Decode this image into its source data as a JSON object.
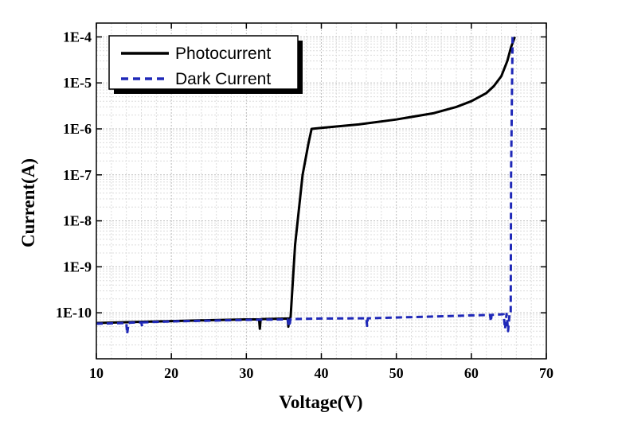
{
  "chart_data": {
    "type": "line",
    "xlabel": "Voltage(V)",
    "ylabel": "Current(A)",
    "xlim": [
      10,
      70
    ],
    "ylim": [
      1e-11,
      0.0002
    ],
    "yscale": "log",
    "grid": true,
    "legend": "top-left",
    "x_ticks": [
      10,
      20,
      30,
      40,
      50,
      60,
      70
    ],
    "x_tick_labels": [
      "10",
      "20",
      "30",
      "40",
      "50",
      "60",
      "70"
    ],
    "y_ticks": [
      1e-10,
      1e-09,
      1e-08,
      1e-07,
      1e-06,
      1e-05,
      0.0001
    ],
    "y_tick_labels": [
      "1E-10",
      "1E-9",
      "1E-8",
      "1E-7",
      "1E-6",
      "1E-5",
      "1E-4"
    ],
    "series": [
      {
        "name": "Photocurrent",
        "color": "#000000",
        "style": "solid",
        "x": [
          10,
          15,
          20,
          25,
          30,
          31.7,
          31.8,
          31.9,
          32,
          35.5,
          35.6,
          35.7,
          35.9,
          36.5,
          37.5,
          38.3,
          38.7,
          40,
          45,
          50,
          55,
          58,
          60,
          62,
          63,
          64,
          64.8,
          65.3,
          65.8
        ],
        "y": [
          6e-11,
          6.3e-11,
          6.6e-11,
          6.9e-11,
          7.2e-11,
          7.2e-11,
          4.5e-11,
          7.2e-11,
          7.3e-11,
          7.5e-11,
          5e-11,
          7.5e-11,
          8e-11,
          3e-09,
          1e-07,
          5e-07,
          1e-06,
          1.05e-06,
          1.25e-06,
          1.6e-06,
          2.2e-06,
          3e-06,
          4e-06,
          6e-06,
          8.5e-06,
          1.4e-05,
          3e-05,
          6e-05,
          0.0001
        ]
      },
      {
        "name": "Dark Current",
        "color": "#1f28b8",
        "style": "dashed",
        "x": [
          10,
          14,
          14.1,
          14.3,
          14.5,
          16,
          16.1,
          16.2,
          20,
          30,
          35.5,
          35.7,
          35.9,
          40,
          46,
          46.1,
          46.2,
          50,
          55,
          60,
          62.5,
          62.6,
          62.7,
          64.3,
          64.5,
          64.7,
          64.9,
          65.1,
          65.25,
          65.3,
          65.5,
          65.8
        ],
        "y": [
          5.8e-11,
          6e-11,
          3.5e-11,
          6e-11,
          6.1e-11,
          6.2e-11,
          5e-11,
          6.2e-11,
          6.5e-11,
          7e-11,
          7.2e-11,
          5e-11,
          7.3e-11,
          7.5e-11,
          7.6e-11,
          5.2e-11,
          7.6e-11,
          7.9e-11,
          8.3e-11,
          8.8e-11,
          9e-11,
          6.5e-11,
          9e-11,
          9.3e-11,
          4.5e-11,
          9.5e-11,
          4e-11,
          9.6e-11,
          9.7e-11,
          1e-07,
          0.0001,
          0.0001
        ]
      }
    ]
  }
}
